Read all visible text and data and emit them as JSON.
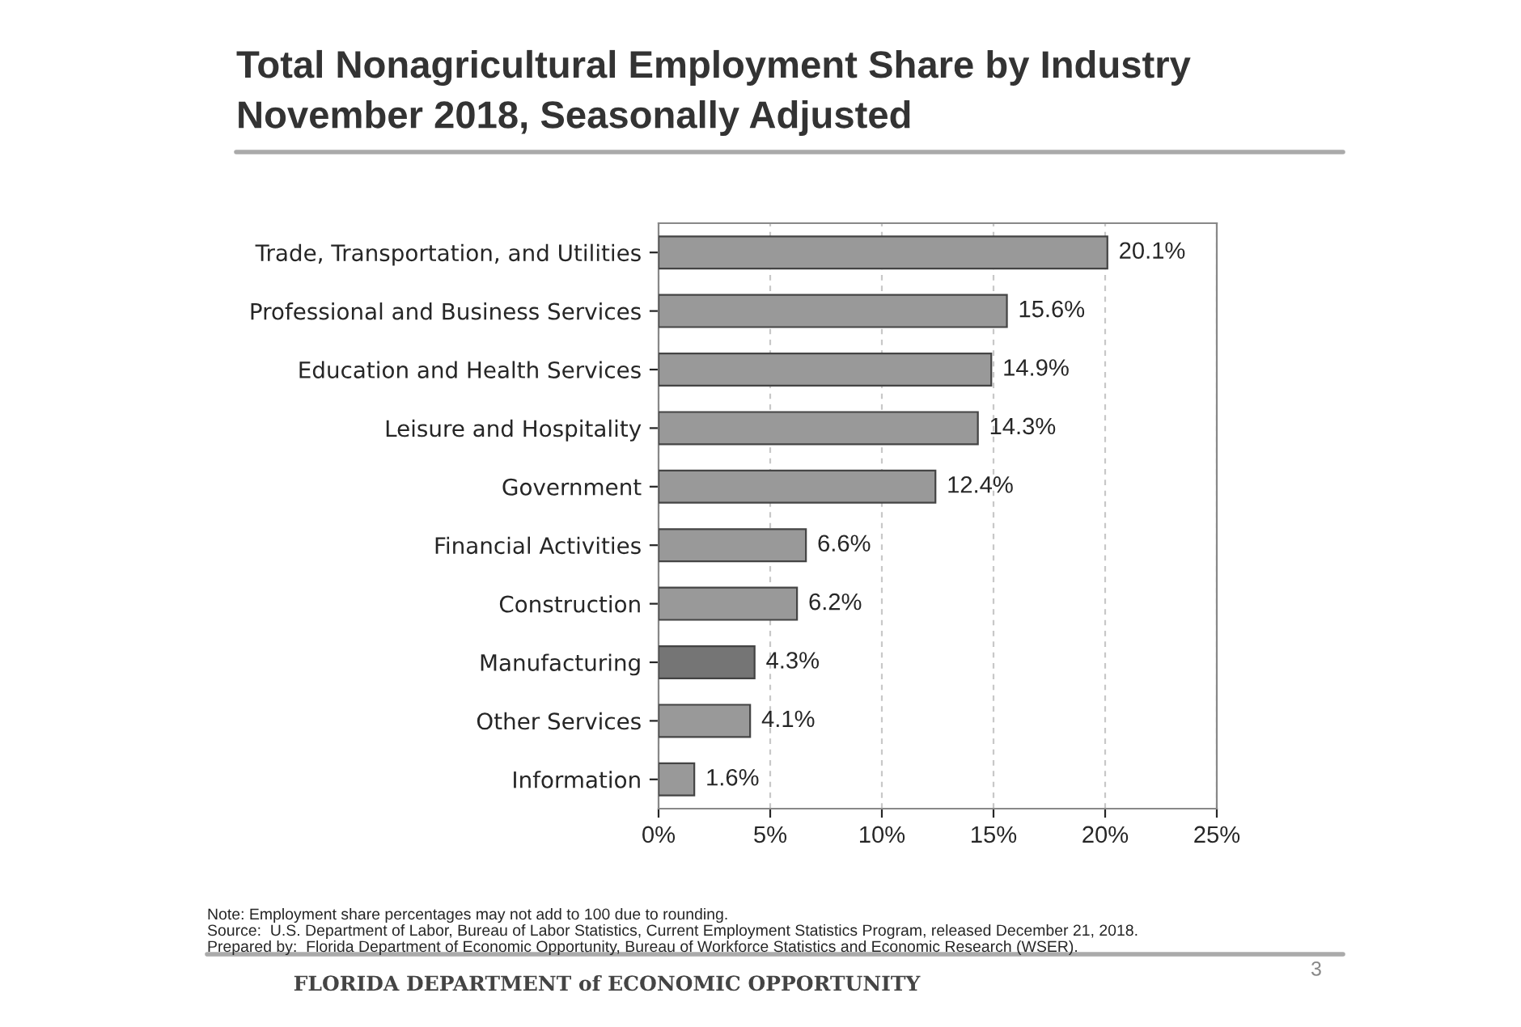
{
  "chart_data": {
    "type": "bar",
    "orientation": "horizontal",
    "title": "Total Nonagricultural Employment Share by Industry",
    "subtitle": "November 2018, Seasonally Adjusted",
    "categories": [
      "Trade, Transportation, and Utilities",
      "Professional and Business Services",
      "Education and Health Services",
      "Leisure and Hospitality",
      "Government",
      "Financial Activities",
      "Construction",
      "Manufacturing",
      "Other Services",
      "Information"
    ],
    "values": [
      20.1,
      15.6,
      14.9,
      14.3,
      12.4,
      6.6,
      6.2,
      4.3,
      4.1,
      1.6
    ],
    "value_labels": [
      "20.1%",
      "15.6%",
      "14.9%",
      "14.3%",
      "12.4%",
      "6.6%",
      "6.2%",
      "4.3%",
      "4.1%",
      "1.6%"
    ],
    "colors": [
      "#999999",
      "#999999",
      "#999999",
      "#999999",
      "#999999",
      "#999999",
      "#999999",
      "#757575",
      "#999999",
      "#999999"
    ],
    "xlim": [
      0,
      25
    ],
    "xticks": [
      {
        "value": 0,
        "label": "0%"
      },
      {
        "value": 5,
        "label": "5%"
      },
      {
        "value": 10,
        "label": "10%"
      },
      {
        "value": 15,
        "label": "15%"
      },
      {
        "value": 20,
        "label": "20%"
      },
      {
        "value": 25,
        "label": "25%"
      }
    ],
    "grid": "x",
    "annotations": [
      "Note: Employment share percentages may not add to 100 due to rounding.",
      "Source:  U.S. Department of Labor, Bureau of Labor Statistics, Current Employment Statistics Program, released December 21, 2018.",
      "Prepared by:  Florida Department of Economic Opportunity, Bureau of Workforce Statistics and Economic Research (WSER).",
      "FLORIDA DEPARTMENT of ECONOMIC OPPORTUNITY",
      "3"
    ]
  }
}
